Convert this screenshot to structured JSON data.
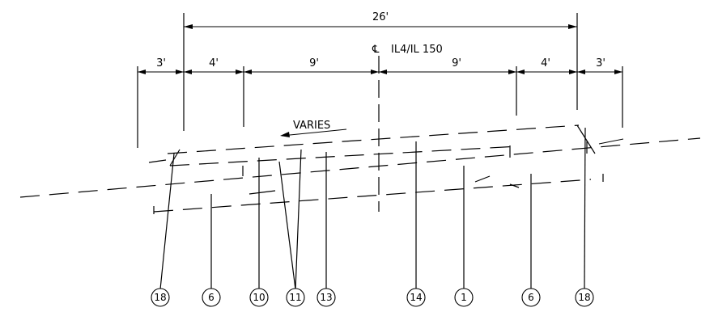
{
  "diagram": {
    "overall_dimension": "26'",
    "centerline_label": "IL4/IL 150",
    "centerline_symbol": "℄",
    "segment_dimensions": [
      "3'",
      "4'",
      "9'",
      "9'",
      "4'",
      "3'"
    ],
    "varies_note": "VARIES",
    "callouts": [
      "18",
      "6",
      "10",
      "11",
      "13",
      "14",
      "1",
      "6",
      "18"
    ]
  }
}
